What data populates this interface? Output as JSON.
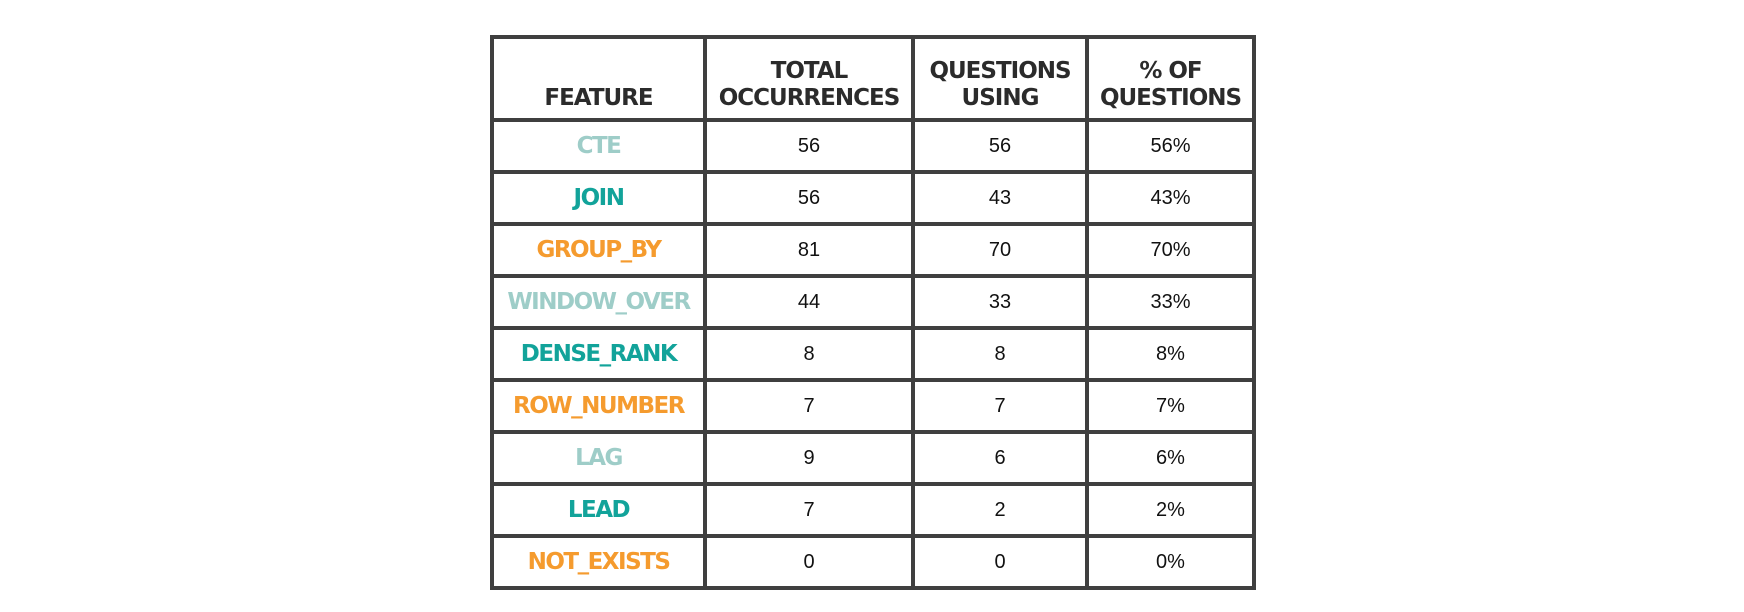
{
  "chart_data": {
    "type": "table",
    "columns": [
      "Feature",
      "Total\nOccurrences",
      "Questions\nUsing",
      "% of\nQuestions"
    ],
    "rows": [
      {
        "feature": "CTE",
        "total": "56",
        "questions": "56",
        "percent": "56%",
        "color": "#9ecdc8"
      },
      {
        "feature": "JOIN",
        "total": "56",
        "questions": "43",
        "percent": "43%",
        "color": "#12a39a"
      },
      {
        "feature": "GROUP_BY",
        "total": "81",
        "questions": "70",
        "percent": "70%",
        "color": "#f59b2e"
      },
      {
        "feature": "WINDOW_OVER",
        "total": "44",
        "questions": "33",
        "percent": "33%",
        "color": "#9ecdc8"
      },
      {
        "feature": "DENSE_RANK",
        "total": "8",
        "questions": "8",
        "percent": "8%",
        "color": "#12a39a"
      },
      {
        "feature": "ROW_NUMBER",
        "total": "7",
        "questions": "7",
        "percent": "7%",
        "color": "#f59b2e"
      },
      {
        "feature": "LAG",
        "total": "9",
        "questions": "6",
        "percent": "6%",
        "color": "#9ecdc8"
      },
      {
        "feature": "LEAD",
        "total": "7",
        "questions": "2",
        "percent": "2%",
        "color": "#12a39a"
      },
      {
        "feature": "NOT_EXISTS",
        "total": "0",
        "questions": "0",
        "percent": "0%",
        "color": "#f59b2e"
      }
    ]
  },
  "colors": {
    "border": "#3f3f3f",
    "header_text": "#2b2b2b"
  }
}
